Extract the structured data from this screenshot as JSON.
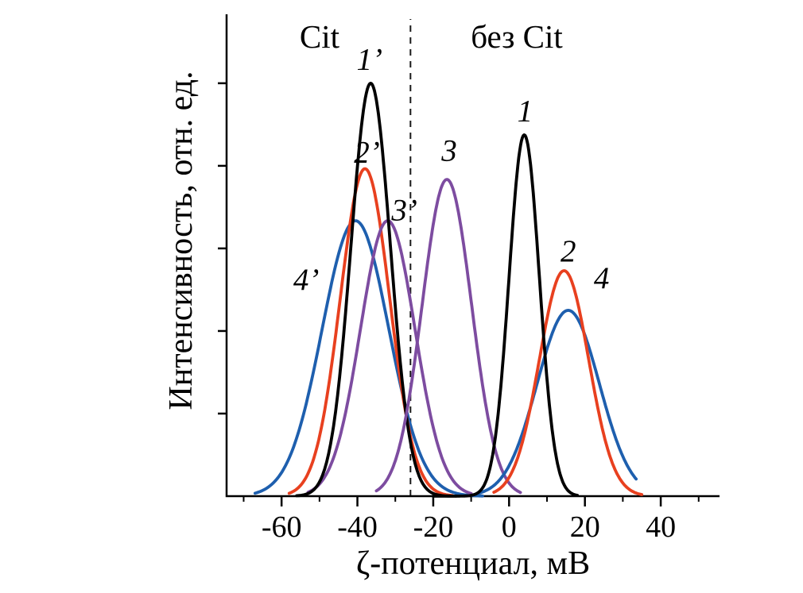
{
  "chart_data": {
    "type": "line",
    "title": "",
    "xlabel": "ζ-потенциал, мВ",
    "ylabel": "Интенсивность, отн. ед.",
    "xlim": [
      -74.5,
      55.5
    ],
    "ylim": [
      0,
      1.167
    ],
    "grid": false,
    "legend": "none",
    "axis_color": "#000000",
    "x_ticks": [
      {
        "value": -60,
        "label": "-60"
      },
      {
        "value": -40,
        "label": "-40"
      },
      {
        "value": -20,
        "label": "-20"
      },
      {
        "value": 0,
        "label": "0"
      },
      {
        "value": 20,
        "label": "20"
      },
      {
        "value": 40,
        "label": "40"
      }
    ],
    "x_minor_ticks": [
      -70,
      -50,
      -30,
      -10,
      10,
      30,
      50
    ],
    "y_ticks_unlabeled": [
      0.2,
      0.4,
      0.6,
      0.8,
      1.0
    ],
    "dashed_guide_x": -26,
    "region_labels": [
      {
        "text": "Cit",
        "x": -50.5,
        "y": 1.114
      },
      {
        "text": "без Cit",
        "x": 2,
        "y": 1.114
      }
    ],
    "series": [
      {
        "name": "4’",
        "color": "#1e5fae",
        "shape": "gaussian",
        "center": -40.5,
        "amplitude": 0.667,
        "sigma": 8.8,
        "x_range": [
          -67,
          -7
        ],
        "label": {
          "text": "4’",
          "x": -53.5,
          "y": 0.525
        }
      },
      {
        "name": "2’",
        "color": "#e8401f",
        "shape": "gaussian",
        "center": -38.0,
        "amplitude": 0.793,
        "sigma": 6.5,
        "x_range": [
          -58,
          -15
        ],
        "label": {
          "text": "2’",
          "x": -37.5,
          "y": 0.833
        }
      },
      {
        "name": "3’",
        "color": "#7d4ca0",
        "shape": "gaussian",
        "center": -32.0,
        "amplitude": 0.667,
        "sigma": 7.2,
        "x_range": [
          -53,
          -10
        ],
        "label": {
          "text": "3’",
          "x": -27.6,
          "y": 0.693
        }
      },
      {
        "name": "1’",
        "color": "#000000",
        "shape": "gaussian",
        "center": -36.5,
        "amplitude": 1.0,
        "sigma": 5.2,
        "x_range": [
          -56,
          -14
        ],
        "label": {
          "text": "1’",
          "x": -36.8,
          "y": 1.058
        }
      },
      {
        "name": "3",
        "color": "#7d4ca0",
        "shape": "gaussian",
        "center": -16.4,
        "amplitude": 0.767,
        "sigma": 6.5,
        "x_range": [
          -35,
          3
        ],
        "label": {
          "text": "3",
          "x": -15.8,
          "y": 0.837
        }
      },
      {
        "name": "4",
        "color": "#1e5fae",
        "shape": "gaussian",
        "center": 15.6,
        "amplitude": 0.45,
        "sigma": 8.2,
        "x_range": [
          -8,
          33.5
        ],
        "label": {
          "text": "4",
          "x": 24.4,
          "y": 0.529
        }
      },
      {
        "name": "2",
        "color": "#e8401f",
        "shape": "gaussian",
        "center": 14.5,
        "amplitude": 0.546,
        "sigma": 6.5,
        "x_range": [
          -4,
          35
        ],
        "label": {
          "text": "2",
          "x": 15.6,
          "y": 0.594
        }
      },
      {
        "name": "1",
        "color": "#000000",
        "shape": "gaussian",
        "center": 4.0,
        "amplitude": 0.875,
        "sigma": 4.0,
        "x_range": [
          -20,
          18
        ],
        "label": {
          "text": "1",
          "x": 4.2,
          "y": 0.933
        }
      }
    ]
  }
}
